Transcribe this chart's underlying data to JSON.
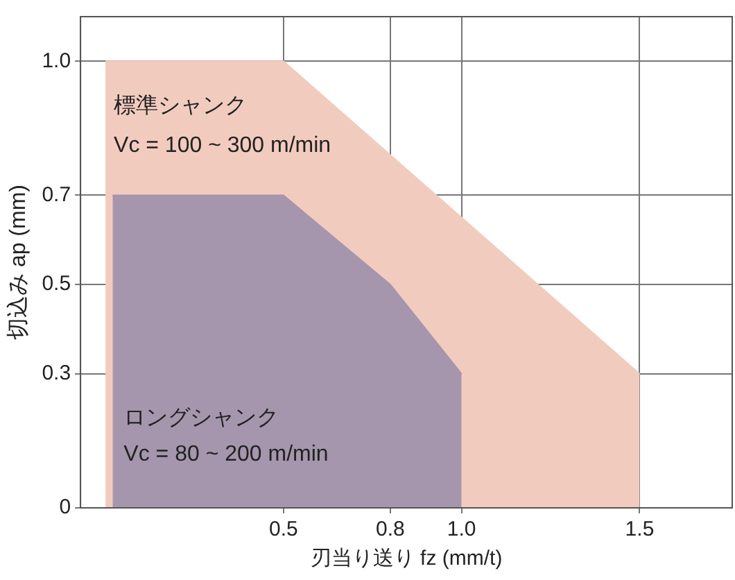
{
  "chart_data": {
    "type": "area",
    "xlabel": "刃当り送り fz (mm/t)",
    "ylabel": "切込み ap (mm)",
    "xlim": [
      -0.07,
      1.76
    ],
    "ylim": [
      0,
      1.1
    ],
    "xticks": [
      0.5,
      0.8,
      {
        "value": 1,
        "label": "1.0"
      },
      1.5
    ],
    "yticks": [
      0,
      0.3,
      0.5,
      0.7,
      {
        "value": 1,
        "label": "1.0"
      }
    ],
    "grid": true,
    "legend": false,
    "series": [
      {
        "color": "#f2cbbf",
        "x": [
          0,
          0.5,
          1.5
        ],
        "values": [
          1,
          1,
          0.3
        ]
      },
      {
        "color": "#a596ad",
        "x": [
          0.02,
          0.5,
          0.8,
          1.0
        ],
        "values": [
          0.7,
          0.7,
          0.5,
          0.3
        ]
      }
    ],
    "annotations": [
      "標準シャンク",
      "Vc = 100 ~ 300 m/min",
      "ロングシャンク",
      "Vc = 80 ~ 200 m/min"
    ]
  }
}
